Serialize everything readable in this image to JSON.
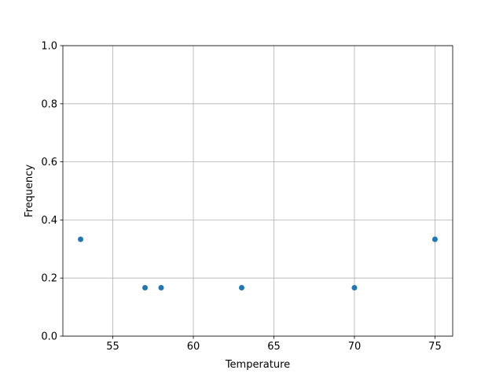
{
  "chart_data": {
    "type": "scatter",
    "title": "",
    "xlabel": "Temperature",
    "ylabel": "Frequency",
    "x": [
      53,
      57,
      58,
      63,
      70,
      75
    ],
    "y": [
      0.3333,
      0.1667,
      0.1667,
      0.1667,
      0.1667,
      0.3333
    ],
    "xlim": [
      51.9,
      76.1
    ],
    "ylim": [
      0.0,
      1.0
    ],
    "xticks": [
      55,
      60,
      65,
      70,
      75
    ],
    "xtick_labels": [
      "55",
      "60",
      "65",
      "70",
      "75"
    ],
    "yticks": [
      0.0,
      0.2,
      0.4,
      0.6,
      0.8,
      1.0
    ],
    "ytick_labels": [
      "0.0",
      "0.2",
      "0.4",
      "0.6",
      "0.8",
      "1.0"
    ],
    "grid": true,
    "color": "#1f77b4"
  }
}
